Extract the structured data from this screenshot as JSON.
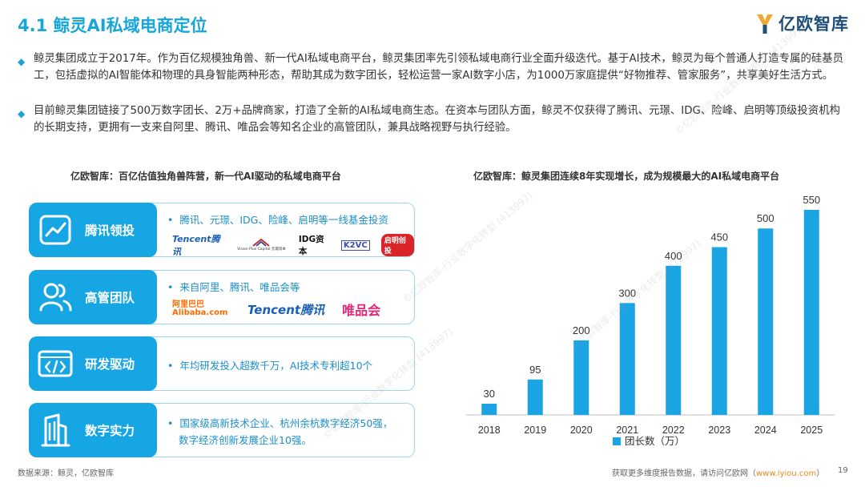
{
  "header": {
    "title": "4.1 鲸灵AI私域电商定位",
    "logo_text": "亿欧智库"
  },
  "paragraphs": [
    "鲸灵集团成立于2017年。作为百亿规模独角兽、新一代AI私域电商平台，鲸灵集团率先引领私域电商行业全面升级迭代。基于AI技术，鲸灵为每个普通人打造专属的硅基员工，包括虚拟的AI智能体和物理的具身智能两种形态，帮助其成为数字团长，轻松运营一家AI数字小店，为1000万家庭提供“好物推荐、管家服务”，共享美好生活方式。",
    "目前鲸灵集团链接了500万数字团长、2万+品牌商家，打造了全新的AI私域电商生态。在资本与团队方面，鲸灵不仅获得了腾讯、元璟、IDG、险峰、启明等顶级投资机构的长期支持，更拥有一支来自阿里、腾讯、唯品会等知名企业的高管团队，兼具战略视野与执行经验。"
  ],
  "left_panel": {
    "title": "亿欧智库：百亿估值独角兽阵营，新一代AI驱动的私域电商平台",
    "cards": [
      {
        "label": "腾讯领投",
        "icon": "trend-chart-icon",
        "line1": "腾讯、元璟、IDG、险峰、启明等一线基金投资",
        "logos": [
          "Tencent腾讯",
          "Vision Plus Capital 元璟资本",
          "IDG资本",
          "K2VC",
          "启明创投"
        ]
      },
      {
        "label": "高管团队",
        "icon": "team-icon",
        "line1": "来自阿里、腾讯、唯品会等",
        "logos": [
          "阿里巴巴 Alibaba.com",
          "Tencent腾讯",
          "唯品会"
        ]
      },
      {
        "label": "研发驱动",
        "icon": "code-icon",
        "line1": "年均研发投入超数千万，AI技术专利超10个"
      },
      {
        "label": "数字实力",
        "icon": "building-icon",
        "line1": "国家级高新技术企业、杭州余杭数字经济50强，",
        "line2": "数字经济创新发展企业10强。"
      }
    ]
  },
  "right_panel": {
    "title": "亿欧智库：鲸灵集团连续8年实现增长，成为规模最大的AI私域电商平台"
  },
  "chart_data": {
    "type": "bar",
    "categories": [
      "2018",
      "2019",
      "2020",
      "2021",
      "2022",
      "2023",
      "2024",
      "2025"
    ],
    "series": [
      {
        "name": "团长数（万）",
        "values": [
          30,
          95,
          200,
          300,
          400,
          450,
          500,
          550
        ]
      }
    ],
    "ylim": [
      0,
      580
    ],
    "color": "#1aa4e3",
    "legend": "bottom"
  },
  "footer": {
    "source": "数据来源：鲸灵，亿欧智库",
    "more_prefix": "获取更多维度报告数据，请访问亿欧网（",
    "more_link": "www.iyiou.com",
    "more_suffix": "）",
    "page": "19"
  },
  "watermark_text": "©亿欧智库-行业数字化转型 (413997)",
  "colors": {
    "accent": "#16a6d9",
    "card_fill": "#16a6e3",
    "card_border": "#9cd6ee",
    "bar": "#1aa4e3"
  }
}
